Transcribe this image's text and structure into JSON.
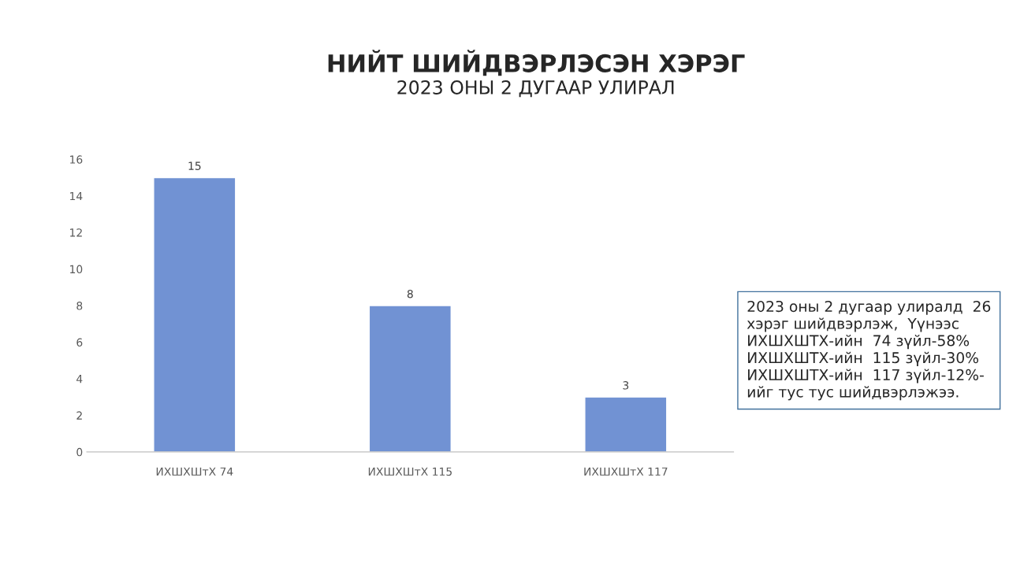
{
  "chart_data": {
    "type": "bar",
    "title": "НИЙТ ШИЙДВЭРЛЭСЭН ХЭРЭГ",
    "subtitle": "2023 ОНЫ 2 ДУГААР УЛИРАЛ",
    "categories": [
      "ИХШХШтХ 74",
      "ИХШХШтХ 115",
      "ИХШХШтХ 117"
    ],
    "values": [
      15,
      8,
      3
    ],
    "color": "#7192d3",
    "ylim": [
      0,
      16
    ],
    "yticks": [
      0,
      2,
      4,
      6,
      8,
      10,
      12,
      14,
      16
    ],
    "grid": false,
    "data_labels": true,
    "annotations": [
      "2023 оны 2 дугаар улиралд  26\nхэрэг шийдвэрлэж,  Үүнээс\nИХШХШТХ-ийн  74 зүйл-58%\nИХШХШТХ-ийн  115 зүйл-30%\nИХШХШТХ-ийн  117 зүйл-12%-\nийг тус тус шийдвэрлэжээ."
    ]
  }
}
